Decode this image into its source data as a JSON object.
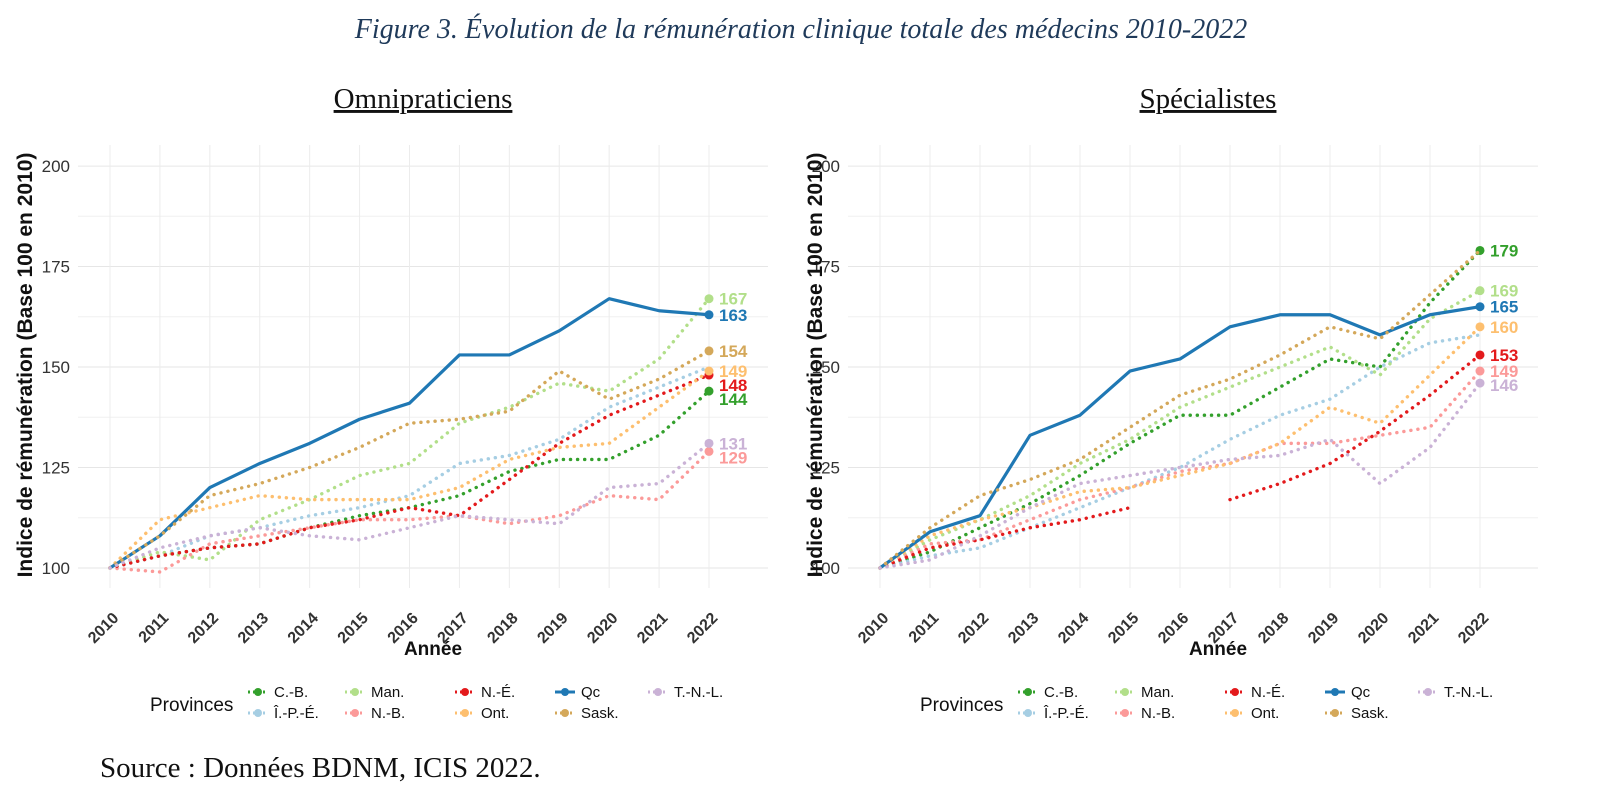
{
  "figure_title": "Figure 3. Évolution de la rémunération clinique totale des médecins 2010-2022",
  "source": "Source : Données BDNM, ICIS 2022.",
  "legend_title": "Provinces",
  "series_colors": {
    "C.-B.": "#33a02c",
    "Î.-P.-É.": "#a6cee3",
    "Man.": "#b2df8a",
    "N.-B.": "#fb9a99",
    "N.-É.": "#e31a1c",
    "Ont.": "#fdbf6f",
    "Qc": "#1f78b4",
    "Sask.": "#d4a85a",
    "T.-N.-L.": "#cab2d6"
  },
  "chart_data": [
    {
      "type": "line",
      "title": "Omnipraticiens",
      "xlabel": "Année",
      "ylabel": "Indice de rémunération (Base 100 en 2010)",
      "x": [
        "2010",
        "2011",
        "2012",
        "2013",
        "2014",
        "2015",
        "2016",
        "2017",
        "2018",
        "2019",
        "2020",
        "2021",
        "2022"
      ],
      "ylim": [
        97,
        204
      ],
      "yticks": [
        100,
        125,
        150,
        175,
        200
      ],
      "grid": true,
      "legend": "bottom",
      "series": [
        {
          "name": "C.-B.",
          "values": [
            100,
            103,
            105,
            106,
            110,
            113,
            115,
            118,
            124,
            127,
            127,
            133,
            144
          ],
          "end_label": "144"
        },
        {
          "name": "Î.-P.-É.",
          "values": [
            100,
            103,
            108,
            110,
            113,
            115,
            118,
            126,
            128,
            132,
            140,
            145,
            150
          ]
        },
        {
          "name": "Man.",
          "values": [
            100,
            104,
            102,
            112,
            117,
            123,
            126,
            136,
            140,
            146,
            144,
            152,
            167
          ],
          "end_label": "167"
        },
        {
          "name": "N.-B.",
          "values": [
            100,
            99,
            106,
            108,
            110,
            112,
            112,
            113,
            111,
            113,
            118,
            117,
            129
          ],
          "end_label": "129"
        },
        {
          "name": "N.-É.",
          "values": [
            100,
            103,
            105,
            106,
            110,
            112,
            115,
            113,
            122,
            131,
            138,
            143,
            148
          ],
          "end_label": "148"
        },
        {
          "name": "Ont.",
          "values": [
            100,
            112,
            115,
            118,
            117,
            117,
            117,
            120,
            127,
            130,
            131,
            140,
            149
          ],
          "end_label": "149"
        },
        {
          "name": "Qc",
          "values": [
            100,
            108,
            120,
            126,
            131,
            137,
            141,
            153,
            153,
            159,
            167,
            164,
            163
          ],
          "end_label": "163"
        },
        {
          "name": "Sask.",
          "values": [
            100,
            108,
            118,
            121,
            125,
            130,
            136,
            137,
            139,
            149,
            142,
            147,
            154
          ],
          "end_label": "154"
        },
        {
          "name": "T.-N.-L.",
          "values": [
            100,
            105,
            108,
            110,
            108,
            107,
            110,
            113,
            112,
            111,
            120,
            121,
            131
          ],
          "end_label": "131"
        }
      ]
    },
    {
      "type": "line",
      "title": "Spécialistes",
      "xlabel": "Année",
      "ylabel": "Indice de rémunération (Base 100 en 2010)",
      "x": [
        "2010",
        "2011",
        "2012",
        "2013",
        "2014",
        "2015",
        "2016",
        "2017",
        "2018",
        "2019",
        "2020",
        "2021",
        "2022"
      ],
      "ylim": [
        97,
        204
      ],
      "yticks": [
        100,
        125,
        150,
        175,
        200
      ],
      "grid": true,
      "legend": "bottom",
      "series": [
        {
          "name": "C.-B.",
          "values": [
            100,
            104,
            110,
            116,
            123,
            131,
            138,
            138,
            145,
            152,
            150,
            166,
            179
          ],
          "end_label": "179"
        },
        {
          "name": "Î.-P.-É.",
          "values": [
            100,
            103,
            105,
            110,
            115,
            120,
            125,
            132,
            138,
            142,
            150,
            156,
            158
          ]
        },
        {
          "name": "Man.",
          "values": [
            100,
            107,
            112,
            118,
            126,
            132,
            140,
            145,
            150,
            155,
            148,
            162,
            169
          ],
          "end_label": "169"
        },
        {
          "name": "N.-B.",
          "values": [
            100,
            106,
            107,
            112,
            117,
            120,
            124,
            126,
            131,
            131,
            133,
            135,
            149
          ],
          "end_label": "149"
        },
        {
          "name": "N.-É.",
          "values": [
            100,
            105,
            107,
            110,
            112,
            115,
            null,
            117,
            121,
            126,
            134,
            143,
            153
          ],
          "end_label": "153"
        },
        {
          "name": "Ont.",
          "values": [
            100,
            108,
            112,
            115,
            119,
            120,
            123,
            126,
            131,
            140,
            136,
            148,
            160
          ],
          "end_label": "160"
        },
        {
          "name": "Qc",
          "values": [
            100,
            109,
            113,
            133,
            138,
            149,
            152,
            160,
            163,
            163,
            158,
            163,
            165
          ],
          "end_label": "165"
        },
        {
          "name": "Sask.",
          "values": [
            100,
            110,
            118,
            122,
            127,
            135,
            143,
            147,
            153,
            160,
            157,
            168,
            179
          ]
        },
        {
          "name": "T.-N.-L.",
          "values": [
            100,
            102,
            108,
            115,
            121,
            123,
            125,
            127,
            128,
            132,
            121,
            130,
            146
          ],
          "end_label": "146"
        }
      ]
    }
  ]
}
